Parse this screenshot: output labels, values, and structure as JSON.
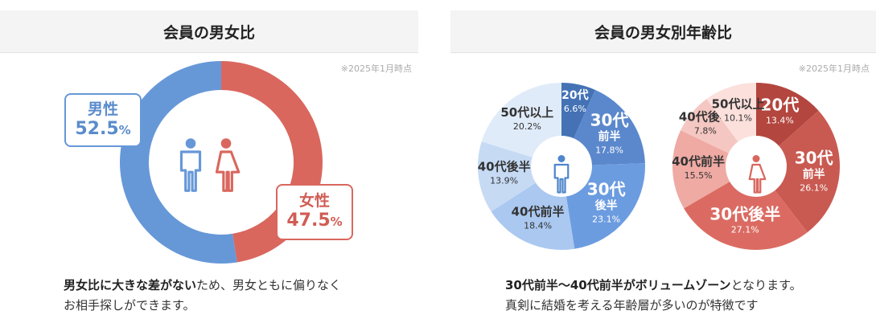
{
  "left": {
    "title": "会員の男女比",
    "note": "※2025年1月時点",
    "caption_bold": "男女比に大きな差がない",
    "caption_rest1": "ため、男女ともに偏りなく",
    "caption_line2": "お相手探しができます。"
  },
  "right": {
    "title": "会員の男女別年齢比",
    "note": "※2025年1月時点",
    "caption_bold": "30代前半〜40代前半がボリュームゾーン",
    "caption_rest1": "となります。",
    "caption_line2": "真剣に結婚を考える年齢層が多いのが特徴です"
  },
  "male_label": "男性",
  "female_label": "女性",
  "male_pct_num": "52.5",
  "female_pct_num": "47.5",
  "pct_sign": "%",
  "colors": {
    "male": "#6698d8",
    "female": "#d9675e"
  },
  "chart_data": [
    {
      "type": "pie",
      "title": "会員の男女比",
      "categories": [
        "男性",
        "女性"
      ],
      "values": [
        52.5,
        47.5
      ],
      "labels": [
        "52.5%",
        "47.5%"
      ]
    },
    {
      "type": "pie",
      "categories": [
        "20代",
        "30代前半",
        "30代後半",
        "40代前半",
        "40代後半",
        "50代以上"
      ],
      "values": [
        6.6,
        17.8,
        23.1,
        18.4,
        13.9,
        20.2
      ],
      "labels": [
        "6.6%",
        "17.8%",
        "23.1%",
        "18.4%",
        "13.9%",
        "20.2%"
      ],
      "colors": [
        "#4472b5",
        "#5b88cc",
        "#6c9ce0",
        "#aac8f0",
        "#c6daf4",
        "#e0ebf9"
      ]
    },
    {
      "type": "pie",
      "categories": [
        "20代",
        "30代前半",
        "30代後半",
        "40代前半",
        "40代後半",
        "50代以上"
      ],
      "values": [
        13.4,
        26.1,
        27.1,
        15.5,
        7.8,
        10.1
      ],
      "labels": [
        "13.4%",
        "26.1%",
        "27.1%",
        "15.5%",
        "7.8%",
        "10.1%"
      ],
      "colors": [
        "#b3463e",
        "#c95a51",
        "#db6b62",
        "#eeaaa3",
        "#f5c7c2",
        "#fbe0dc"
      ]
    }
  ]
}
